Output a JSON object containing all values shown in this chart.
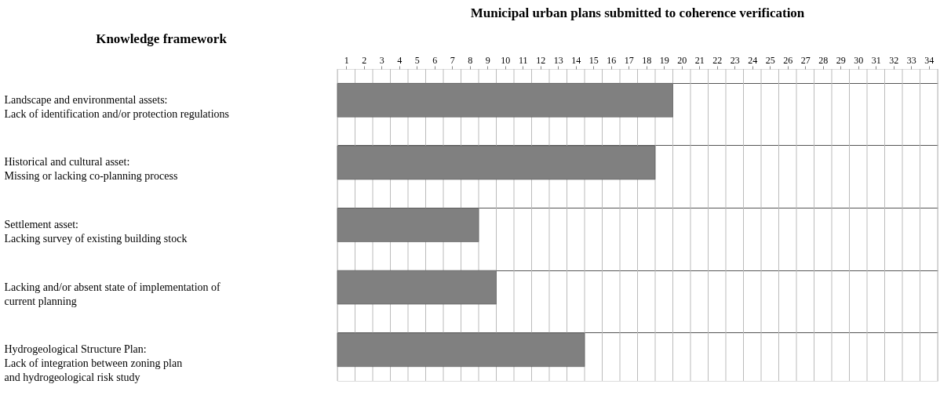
{
  "chart_data": {
    "type": "bar",
    "orientation": "horizontal",
    "title": "Municipal urban plans submitted to coherence verification",
    "ylabel": "Knowledge framework",
    "categories": [
      "Landscape and environmental assets:\nLack of identification and/or protection regulations",
      "Historical and cultural asset:\nMissing or lacking co-planning process",
      "Settlement asset:\nLacking survey of existing building stock",
      "Lacking and/or absent state of implementation of\ncurrent planning",
      "Hydrogeological Structure Plan:\nLack of integration between zoning plan\nand hydrogeological risk study"
    ],
    "values": [
      19,
      18,
      8,
      9,
      14
    ],
    "color": "#808080",
    "xlim": [
      0,
      34
    ],
    "xticks": [
      {
        "value": 0.5,
        "label": "1"
      },
      {
        "value": 1.5,
        "label": "2"
      },
      {
        "value": 2.5,
        "label": "3"
      },
      {
        "value": 3.5,
        "label": "4"
      },
      {
        "value": 4.5,
        "label": "5"
      },
      {
        "value": 5.5,
        "label": "6"
      },
      {
        "value": 6.5,
        "label": "7"
      },
      {
        "value": 7.5,
        "label": "8"
      },
      {
        "value": 8.5,
        "label": "9"
      },
      {
        "value": 9.5,
        "label": "10"
      },
      {
        "value": 10.5,
        "label": "11"
      },
      {
        "value": 11.5,
        "label": "12"
      },
      {
        "value": 12.5,
        "label": "13"
      },
      {
        "value": 13.5,
        "label": "14"
      },
      {
        "value": 14.5,
        "label": "15"
      },
      {
        "value": 15.5,
        "label": "16"
      },
      {
        "value": 16.5,
        "label": "17"
      },
      {
        "value": 17.5,
        "label": "18"
      },
      {
        "value": 18.5,
        "label": "19"
      },
      {
        "value": 19.5,
        "label": "20"
      },
      {
        "value": 20.5,
        "label": "21"
      },
      {
        "value": 21.5,
        "label": "22"
      },
      {
        "value": 22.5,
        "label": "23"
      },
      {
        "value": 23.5,
        "label": "24"
      },
      {
        "value": 24.5,
        "label": "25"
      },
      {
        "value": 25.5,
        "label": "26"
      },
      {
        "value": 26.5,
        "label": "27"
      },
      {
        "value": 27.5,
        "label": "28"
      },
      {
        "value": 28.5,
        "label": "29"
      },
      {
        "value": 29.5,
        "label": "30"
      },
      {
        "value": 30.5,
        "label": "31"
      },
      {
        "value": 31.5,
        "label": "32"
      },
      {
        "value": 32.5,
        "label": "33"
      },
      {
        "value": 33.5,
        "label": "34"
      }
    ],
    "grid": true
  }
}
